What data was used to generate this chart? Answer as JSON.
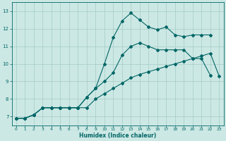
{
  "xlabel": "Humidex (Indice chaleur)",
  "bg_color": "#cce8e4",
  "grid_color": "#aacfca",
  "line_color": "#006666",
  "xlim": [
    -0.5,
    23.5
  ],
  "ylim": [
    6.5,
    13.5
  ],
  "xticks": [
    0,
    1,
    2,
    3,
    4,
    5,
    6,
    7,
    8,
    9,
    10,
    11,
    12,
    13,
    14,
    15,
    16,
    17,
    18,
    19,
    20,
    21,
    22,
    23
  ],
  "yticks": [
    7,
    8,
    9,
    10,
    11,
    12,
    13
  ],
  "series": [
    {
      "x": [
        0,
        1,
        2,
        3,
        4,
        5,
        6,
        7,
        8,
        9,
        10,
        11,
        12,
        13,
        14,
        15,
        16,
        17,
        18,
        19,
        20,
        21,
        22
      ],
      "y": [
        6.9,
        6.9,
        7.1,
        7.5,
        7.5,
        7.5,
        7.5,
        7.5,
        8.1,
        8.6,
        10.0,
        11.5,
        12.45,
        12.9,
        12.5,
        12.1,
        11.95,
        12.1,
        11.65,
        11.55,
        11.65,
        11.65,
        11.65
      ]
    },
    {
      "x": [
        0,
        1,
        2,
        3,
        4,
        5,
        6,
        7,
        8,
        9,
        10,
        11,
        12,
        13,
        14,
        15,
        16,
        17,
        18,
        19,
        20,
        21,
        22
      ],
      "y": [
        6.9,
        6.9,
        7.1,
        7.5,
        7.5,
        7.5,
        7.5,
        7.5,
        8.1,
        8.6,
        9.0,
        9.5,
        10.5,
        11.0,
        11.2,
        11.0,
        10.8,
        10.8,
        10.8,
        10.8,
        10.3,
        10.3,
        9.35
      ]
    },
    {
      "x": [
        0,
        1,
        2,
        3,
        4,
        5,
        6,
        7,
        8,
        9,
        10,
        11,
        12,
        13,
        14,
        15,
        16,
        17,
        18,
        19,
        20,
        21,
        22,
        23
      ],
      "y": [
        6.9,
        6.9,
        7.1,
        7.5,
        7.5,
        7.5,
        7.5,
        7.5,
        7.5,
        8.0,
        8.3,
        8.6,
        8.9,
        9.2,
        9.4,
        9.55,
        9.7,
        9.85,
        10.0,
        10.15,
        10.3,
        10.45,
        10.6,
        9.3
      ]
    }
  ]
}
